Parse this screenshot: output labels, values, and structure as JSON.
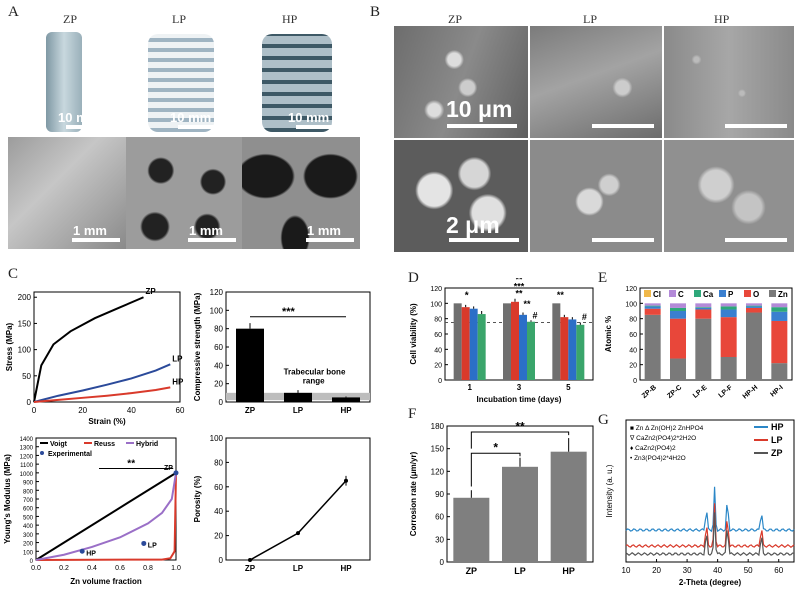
{
  "panels": {
    "A": {
      "label": "A",
      "columns": [
        "ZP",
        "LP",
        "HP"
      ],
      "scale_top": "10 mm",
      "scale_bottom": "1 mm"
    },
    "B": {
      "label": "B",
      "columns": [
        "ZP",
        "LP",
        "HP"
      ],
      "scale_top": "10 μm",
      "scale_bottom": "2 μm"
    },
    "C": {
      "label": "C"
    },
    "D": {
      "label": "D"
    },
    "E": {
      "label": "E"
    },
    "F": {
      "label": "F"
    },
    "G": {
      "label": "G"
    }
  },
  "chart_data": [
    {
      "id": "C1",
      "type": "line",
      "xlabel": "Strain (%)",
      "ylabel": "Stress (MPa)",
      "xlim": [
        0,
        60
      ],
      "ylim": [
        0,
        210
      ],
      "xticks": [
        0,
        20,
        40,
        60
      ],
      "yticks": [
        0,
        50,
        100,
        150,
        200
      ],
      "series": [
        {
          "name": "ZP",
          "color": "#000000",
          "x": [
            0,
            3,
            8,
            15,
            25,
            35,
            45
          ],
          "y": [
            0,
            70,
            110,
            135,
            160,
            180,
            200
          ]
        },
        {
          "name": "LP",
          "color": "#2b4a9a",
          "x": [
            0,
            10,
            20,
            30,
            40,
            50,
            56
          ],
          "y": [
            0,
            12,
            22,
            33,
            45,
            60,
            72
          ]
        },
        {
          "name": "HP",
          "color": "#d93a2b",
          "x": [
            0,
            10,
            20,
            30,
            40,
            50,
            56
          ],
          "y": [
            0,
            4,
            8,
            12,
            17,
            23,
            28
          ]
        }
      ]
    },
    {
      "id": "C2",
      "type": "bar",
      "ylabel": "Compressive strength (MPa)",
      "ylim": [
        0,
        120
      ],
      "yticks": [
        0,
        20,
        40,
        60,
        80,
        100,
        120
      ],
      "categories": [
        "ZP",
        "LP",
        "HP"
      ],
      "values": [
        80,
        10,
        5
      ],
      "errors": [
        6,
        3,
        1
      ],
      "bar_color": "#000000",
      "annotations": [
        "***",
        "Trabecular bone",
        "range"
      ]
    },
    {
      "id": "C3",
      "type": "line",
      "xlabel": "Zn volume fraction",
      "ylabel": "Young's Modulus (MPa)",
      "xlim": [
        0,
        1.0
      ],
      "ylim": [
        0,
        1400
      ],
      "xticks": [
        0.0,
        0.2,
        0.4,
        0.6,
        0.8,
        1.0
      ],
      "yticks": [
        0,
        100,
        200,
        300,
        400,
        500,
        600,
        700,
        800,
        900,
        1000,
        1100,
        1200,
        1300,
        1400
      ],
      "series": [
        {
          "name": "Voigt",
          "color": "#000000",
          "x": [
            0,
            1
          ],
          "y": [
            0,
            1000
          ]
        },
        {
          "name": "Reuss",
          "color": "#d93a2b",
          "x": [
            0,
            0.9,
            0.96,
            0.99,
            1.0
          ],
          "y": [
            0,
            5,
            20,
            100,
            1000
          ]
        },
        {
          "name": "Hybrid",
          "color": "#9a6fc7",
          "x": [
            0,
            0.2,
            0.4,
            0.6,
            0.8,
            0.9,
            0.97,
            1.0
          ],
          "y": [
            0,
            60,
            150,
            260,
            420,
            540,
            700,
            1000
          ]
        }
      ],
      "experimental": {
        "name": "Experimental",
        "color": "#2b4a9a",
        "points": [
          {
            "label": "HP",
            "x": 0.33,
            "y": 100
          },
          {
            "label": "LP",
            "x": 0.77,
            "y": 190
          },
          {
            "label": "ZP",
            "x": 1.0,
            "y": 1000
          }
        ]
      },
      "annotations": [
        "**"
      ]
    },
    {
      "id": "C4",
      "type": "line",
      "ylabel": "Porosity (%)",
      "ylim": [
        0,
        100
      ],
      "yticks": [
        0,
        20,
        40,
        60,
        80,
        100
      ],
      "categories": [
        "ZP",
        "LP",
        "HP"
      ],
      "values": [
        0,
        22,
        65
      ],
      "errors": [
        0,
        1,
        4
      ]
    },
    {
      "id": "D",
      "type": "bar",
      "xlabel": "Incubation time (days)",
      "ylabel": "Cell viability (%)",
      "ylim": [
        0,
        120
      ],
      "yticks": [
        0,
        20,
        40,
        60,
        80,
        100,
        120
      ],
      "categories": [
        "1",
        "3",
        "5"
      ],
      "series": [
        {
          "color": "#6f6f6f",
          "values": [
            100,
            100,
            100
          ],
          "errors": [
            0,
            0,
            0
          ]
        },
        {
          "color": "#d93a2b",
          "values": [
            95,
            102,
            82
          ],
          "errors": [
            3,
            4,
            3
          ]
        },
        {
          "color": "#2b6fc7",
          "values": [
            93,
            85,
            79
          ],
          "errors": [
            3,
            3,
            3
          ]
        },
        {
          "color": "#3aa56b",
          "values": [
            86,
            76,
            72
          ],
          "errors": [
            4,
            2,
            3
          ]
        }
      ],
      "annotations": [
        "*",
        "**",
        "***",
        "**",
        "**",
        "#",
        "**",
        "#"
      ]
    },
    {
      "id": "E",
      "type": "bar",
      "stacked": true,
      "ylabel": "Atomic %",
      "ylim": [
        0,
        120
      ],
      "yticks": [
        0,
        20,
        40,
        60,
        80,
        100,
        120
      ],
      "categories": [
        "ZP-B",
        "ZP-C",
        "LP-E",
        "LP-F",
        "HP-H",
        "HP-I"
      ],
      "series": [
        {
          "name": "Zn",
          "color": "#7a7a7a",
          "values": [
            85,
            28,
            80,
            30,
            88,
            22
          ]
        },
        {
          "name": "O",
          "color": "#e8473a",
          "values": [
            8,
            52,
            12,
            52,
            6,
            55
          ]
        },
        {
          "name": "P",
          "color": "#3a7fcf",
          "values": [
            3,
            10,
            2,
            10,
            2,
            12
          ]
        },
        {
          "name": "Ca",
          "color": "#2ea87a",
          "values": [
            1,
            4,
            1,
            4,
            1,
            6
          ]
        },
        {
          "name": "C",
          "color": "#b38ad8",
          "values": [
            3,
            6,
            5,
            4,
            3,
            5
          ]
        },
        {
          "name": "Cl",
          "color": "#f0b84a",
          "values": [
            0,
            0,
            0,
            0,
            0,
            0
          ]
        }
      ]
    },
    {
      "id": "F",
      "type": "bar",
      "ylabel": "Corrosion rate (μm/yr)",
      "ylim": [
        0,
        180
      ],
      "yticks": [
        0,
        30,
        60,
        90,
        120,
        150,
        180
      ],
      "categories": [
        "ZP",
        "LP",
        "HP"
      ],
      "values": [
        85,
        126,
        146
      ],
      "errors": [
        10,
        12,
        18
      ],
      "bar_color": "#7f7f7f",
      "annotations": [
        "*",
        "**"
      ]
    },
    {
      "id": "G",
      "type": "line",
      "xlabel": "2-Theta (degree)",
      "ylabel": "Intensity (a. u.)",
      "xlim": [
        10,
        65
      ],
      "xticks": [
        10,
        20,
        30,
        40,
        50,
        60
      ],
      "series": [
        {
          "name": "HP",
          "color": "#2b87c7"
        },
        {
          "name": "LP",
          "color": "#d93a2b"
        },
        {
          "name": "ZP",
          "color": "#555555"
        }
      ],
      "legend_text": [
        "■ Zn  Δ Zn(OH)2   ZnHPO4",
        "∇ CaZn2(PO4)2*2H2O",
        "♦ CaZn2(PO4)2",
        "• Zn3(PO4)2*4H2O"
      ]
    }
  ]
}
